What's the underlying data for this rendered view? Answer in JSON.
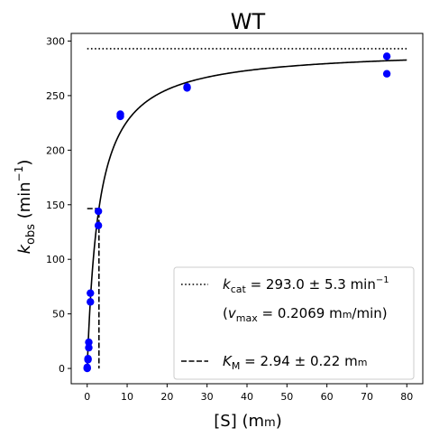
{
  "chart_data": {
    "type": "scatter",
    "title": "WT",
    "xlabel_main": "[S] (m",
    "xlabel_unit_sc": "m",
    "xlabel_close": ")",
    "ylabel_main": "k",
    "ylabel_sub": "obs",
    "ylabel_unit": " (min",
    "ylabel_sup": "−1",
    "ylabel_close": ")",
    "xlim": [
      -4,
      84
    ],
    "ylim": [
      -14,
      307
    ],
    "xticks": [
      0,
      10,
      20,
      30,
      40,
      50,
      60,
      70,
      80
    ],
    "yticks": [
      0,
      50,
      100,
      150,
      200,
      250,
      300
    ],
    "grid": false,
    "legend_position": "lower-right",
    "colors": {
      "points": "#0000ff",
      "lines": "#000000"
    },
    "series": [
      {
        "kind": "points",
        "x": [
          0,
          0,
          0.2,
          0.2,
          0.4,
          0.4,
          0.8,
          0.8,
          2.8,
          2.8,
          8.3,
          8.3,
          25,
          25,
          75,
          75
        ],
        "y": [
          0,
          1,
          8,
          9,
          19,
          24,
          61,
          69,
          131,
          144,
          231,
          233,
          257,
          258,
          270,
          286
        ]
      },
      {
        "kind": "fit",
        "model": "michaelis-menten",
        "kcat": 293.0,
        "km": 2.94,
        "x_range": [
          0,
          80
        ]
      },
      {
        "kind": "kcat-line",
        "y": 293.0,
        "x_range": [
          0,
          80
        ]
      },
      {
        "kind": "km-line",
        "x": 2.94,
        "y": 146.5
      }
    ],
    "legend": [
      {
        "style": "dotted",
        "sym": "k",
        "sub": "cat",
        "text": " = 293.0 ± 5.3 min",
        "sup": "−1"
      },
      {
        "style": "none",
        "open": "(",
        "sym": "v",
        "sub": "max",
        "text": " = 0.2069 m",
        "sc": "m",
        "tail": "/min)"
      },
      {
        "style": "dashed",
        "sym": "K",
        "sub": "M",
        "text": " = 2.94 ± 0.22 m",
        "sc": "m",
        "tail": ""
      }
    ]
  }
}
